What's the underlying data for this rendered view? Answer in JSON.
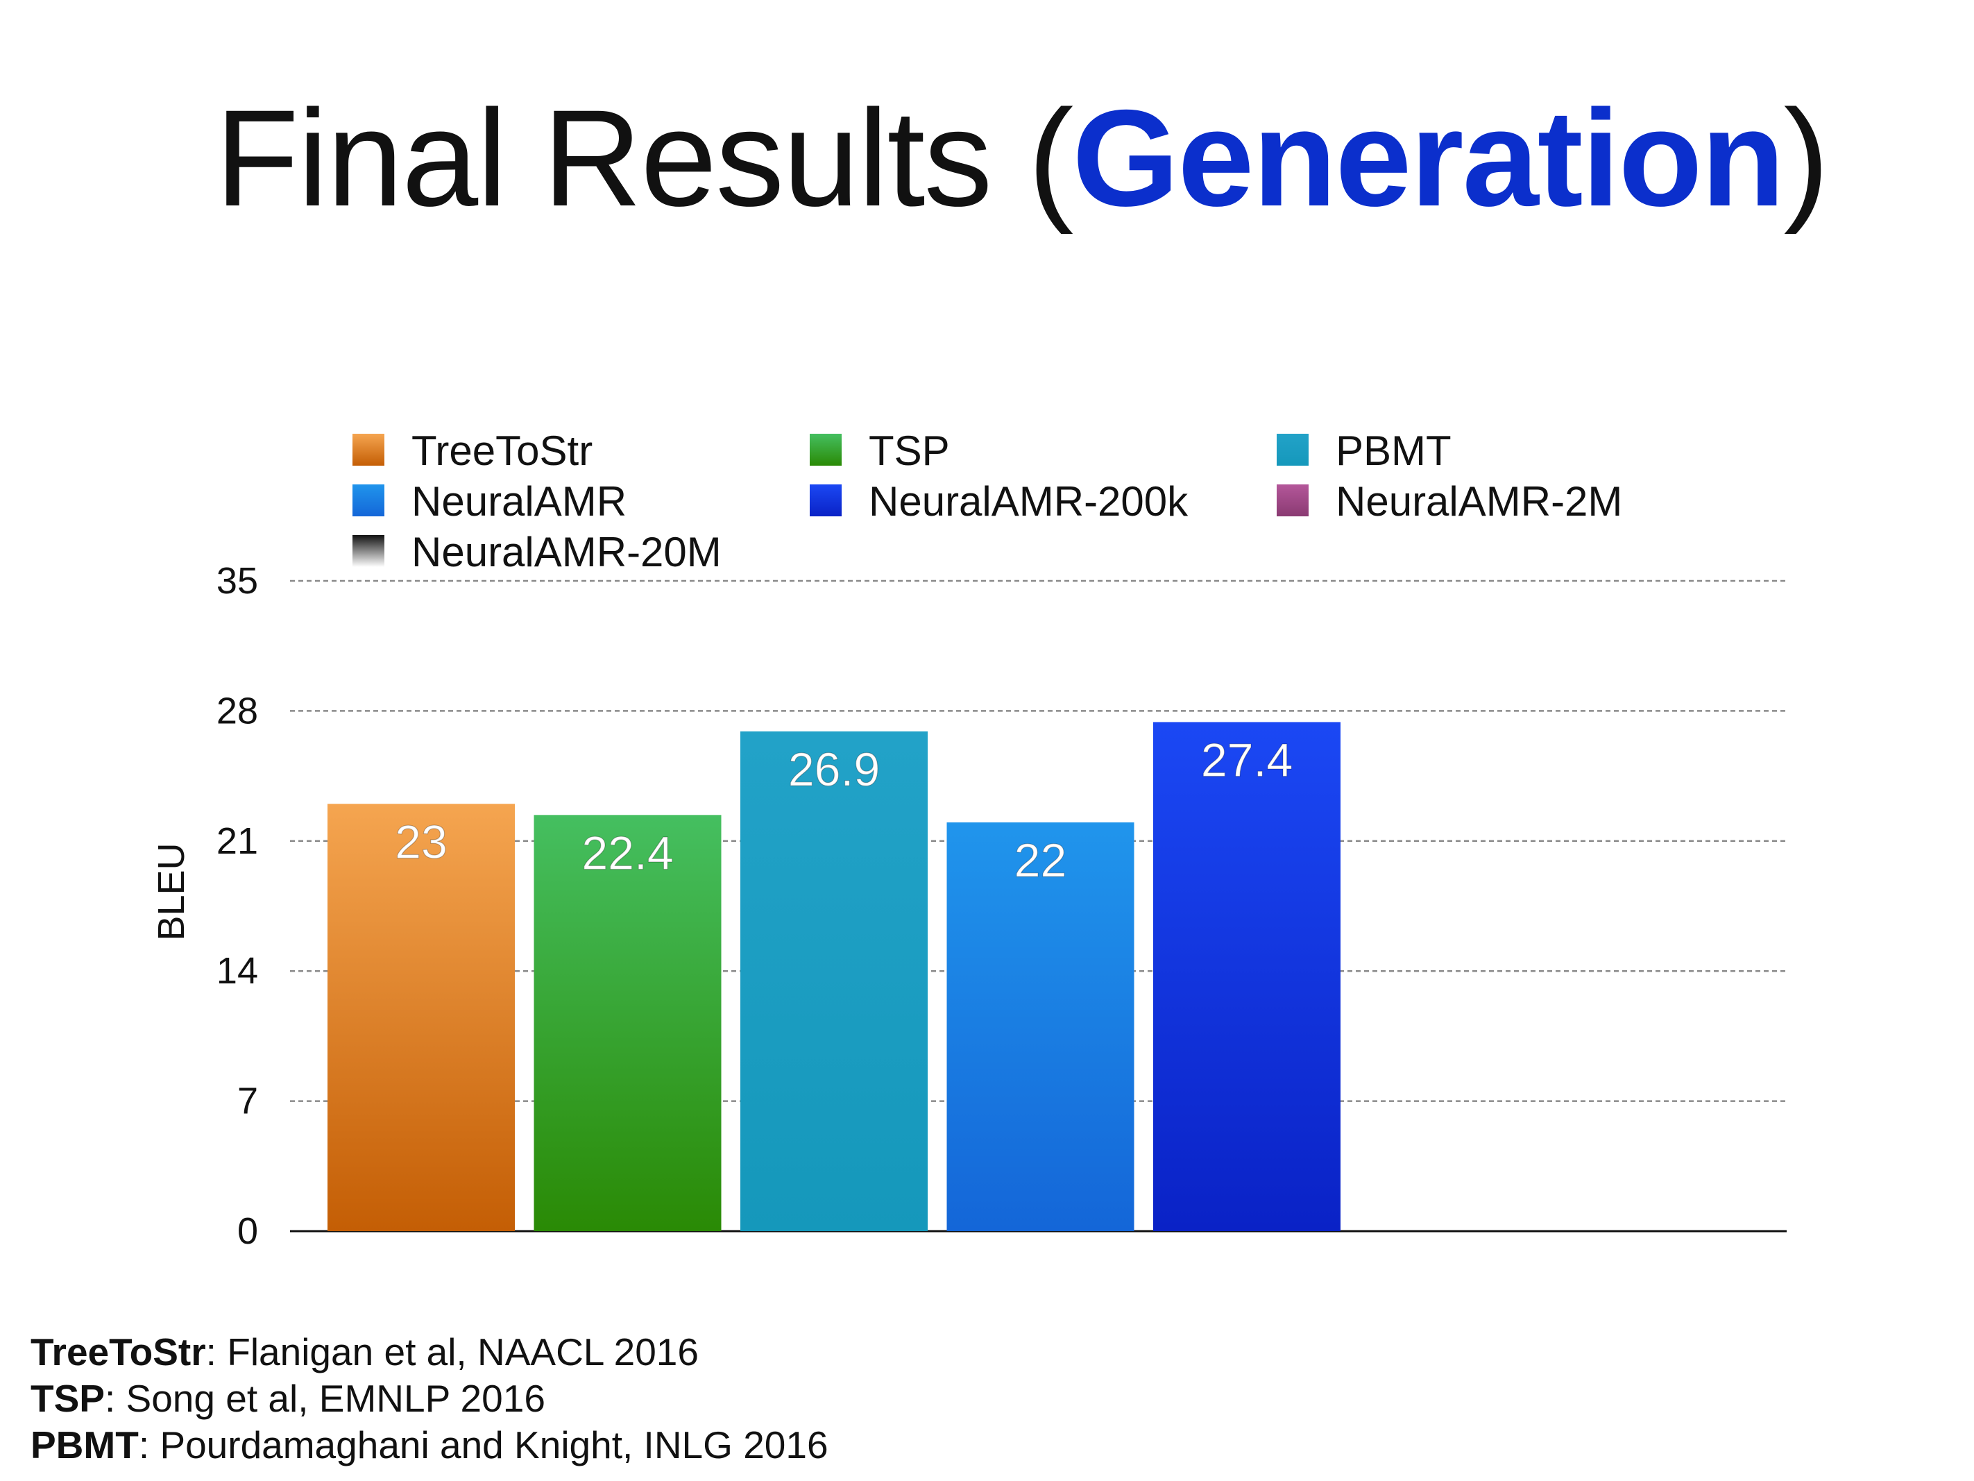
{
  "title": {
    "prefix": "Final Results (",
    "accent": "Generation",
    "suffix": ")",
    "accent_color": "#0b2fcc"
  },
  "chart_data": {
    "type": "bar",
    "title": "",
    "xlabel": "",
    "ylabel": "BLEU",
    "ylim": [
      0,
      35
    ],
    "yticks": [
      0,
      7,
      14,
      21,
      28,
      35
    ],
    "grid": true,
    "legend_position": "top",
    "categories": [
      "TreeToStr",
      "TSP",
      "PBMT",
      "NeuralAMR",
      "NeuralAMR-200k",
      "NeuralAMR-2M",
      "NeuralAMR-20M"
    ],
    "series": [
      {
        "name": "TreeToStr",
        "value": 23,
        "label": "23",
        "color_top": "#f5a550",
        "color_bottom": "#c45e05"
      },
      {
        "name": "TSP",
        "value": 22.4,
        "label": "22.4",
        "color_top": "#45bf60",
        "color_bottom": "#2a8a05"
      },
      {
        "name": "PBMT",
        "value": 26.9,
        "label": "26.9",
        "color_top": "#22a2c8",
        "color_bottom": "#1598bb"
      },
      {
        "name": "NeuralAMR",
        "value": 22,
        "label": "22",
        "color_top": "#2095ec",
        "color_bottom": "#1466d8"
      },
      {
        "name": "NeuralAMR-200k",
        "value": 27.4,
        "label": "27.4",
        "color_top": "#1b48f4",
        "color_bottom": "#0a22c6"
      },
      {
        "name": "NeuralAMR-2M",
        "value": null,
        "label": "",
        "color_top": "#b4579a",
        "color_bottom": "#8a3a72"
      },
      {
        "name": "NeuralAMR-20M",
        "value": null,
        "label": "",
        "color_top": "#111111",
        "color_bottom": "#ffffff"
      }
    ]
  },
  "references": [
    {
      "name": "TreeToStr",
      "citation": ": Flanigan et al, NAACL 2016"
    },
    {
      "name": "TSP",
      "citation": ": Song et al, EMNLP 2016"
    },
    {
      "name": "PBMT",
      "citation": ": Pourdamaghani and Knight, INLG 2016"
    }
  ]
}
